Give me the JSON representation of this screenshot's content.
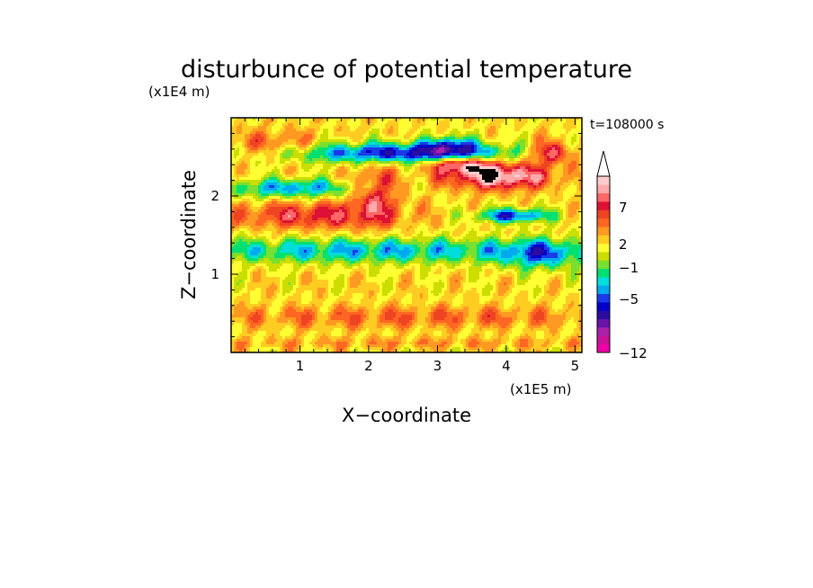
{
  "chart_data": {
    "type": "heatmap",
    "title": "disturbunce of potential temperature",
    "xlabel": "X−coordinate",
    "ylabel": "Z−coordinate",
    "x_unit": "(x1E5 m)",
    "y_unit": "(x1E4 m)",
    "time_label": "t=108000 s",
    "xlim": [
      0,
      5.1
    ],
    "ylim": [
      0,
      3.0
    ],
    "x_ticks": [
      1,
      2,
      3,
      4,
      5
    ],
    "y_ticks": [
      1,
      2
    ],
    "colorbar": {
      "labels": [
        "7",
        "2",
        "−1",
        "−5",
        "−12"
      ],
      "levels": [
        -12,
        -11,
        -10,
        -9,
        -8,
        -7,
        -6,
        -5,
        -4,
        -3,
        -2,
        -1,
        0,
        1,
        2,
        3,
        4,
        5,
        6,
        7,
        8,
        9
      ],
      "colors": [
        "#ee00aa",
        "#cc1199",
        "#aa22aa",
        "#6a14a8",
        "#2a0da0",
        "#0000c8",
        "#1a3ae8",
        "#00aaee",
        "#00dddd",
        "#00e070",
        "#77e030",
        "#ccdd00",
        "#ffff33",
        "#ffcc22",
        "#ff9922",
        "#ff6622",
        "#ee4422",
        "#dd1133",
        "#ff6666",
        "#ffaaaa",
        "#ffcccc"
      ]
    },
    "features": [
      {
        "x": 2.5,
        "z": 2.55,
        "sx": 1.7,
        "sz": 0.13,
        "value": -8.0
      },
      {
        "x": 3.2,
        "z": 2.65,
        "sx": 0.35,
        "sz": 0.13,
        "value": -5.0
      },
      {
        "x": 0.9,
        "z": 2.1,
        "sx": 1.0,
        "sz": 0.12,
        "value": -5.5
      },
      {
        "x": 4.1,
        "z": 1.75,
        "sx": 0.55,
        "sz": 0.09,
        "value": -7.0
      },
      {
        "x": 3.9,
        "z": 2.25,
        "sx": 0.75,
        "sz": 0.16,
        "value": 8.0
      },
      {
        "x": 3.35,
        "z": 2.4,
        "sx": 0.45,
        "sz": 0.1,
        "value": 6.5
      },
      {
        "x": 4.65,
        "z": 2.55,
        "sx": 0.35,
        "sz": 0.14,
        "value": 6.0
      },
      {
        "x": 1.2,
        "z": 1.75,
        "sx": 1.2,
        "sz": 0.17,
        "value": 4.5
      },
      {
        "x": 2.1,
        "z": 2.05,
        "sx": 0.35,
        "sz": 0.35,
        "value": 4.5
      },
      {
        "x": 0.6,
        "z": 2.65,
        "sx": 0.7,
        "sz": 0.18,
        "value": 3.0
      },
      {
        "x": 2.0,
        "z": 1.3,
        "sx": 3.2,
        "sz": 0.16,
        "value": -5.0
      },
      {
        "x": 4.5,
        "z": 1.25,
        "sx": 0.6,
        "sz": 0.2,
        "value": -4.5
      },
      {
        "x": 2.5,
        "z": 0.72,
        "sx": 3.5,
        "sz": 0.2,
        "value": 0.0
      },
      {
        "x": 2.6,
        "z": 0.45,
        "sx": 3.5,
        "sz": 0.14,
        "value": 2.5
      },
      {
        "x": 2.6,
        "z": 0.12,
        "sx": 3.5,
        "sz": 0.07,
        "value": 1.5
      }
    ]
  }
}
